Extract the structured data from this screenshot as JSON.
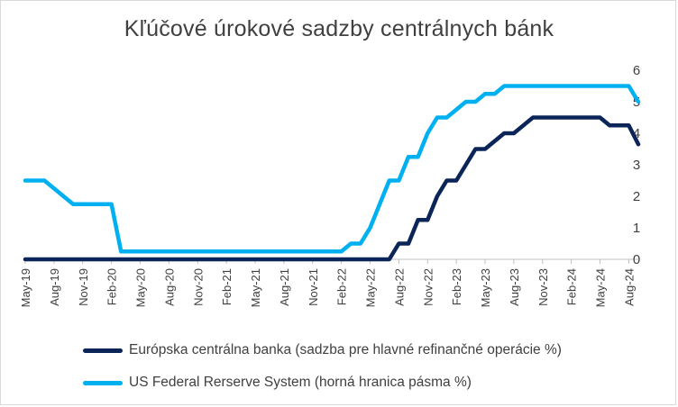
{
  "chart_data": {
    "type": "line",
    "title": "Kľúčové úrokové sadzby centrálnych bánk",
    "xlabel": "",
    "ylabel": "",
    "ylim": [
      0,
      6
    ],
    "yticks": [
      "0",
      "1",
      "2",
      "3",
      "4",
      "5",
      "6"
    ],
    "y_axis_position": "right",
    "grid": false,
    "legend_position": "bottom",
    "x": [
      "May-19",
      "Jun-19",
      "Jul-19",
      "Aug-19",
      "Sep-19",
      "Oct-19",
      "Nov-19",
      "Dec-19",
      "Jan-20",
      "Feb-20",
      "Mar-20",
      "Apr-20",
      "May-20",
      "Jun-20",
      "Jul-20",
      "Aug-20",
      "Sep-20",
      "Oct-20",
      "Nov-20",
      "Dec-20",
      "Jan-21",
      "Feb-21",
      "Mar-21",
      "Apr-21",
      "May-21",
      "Jun-21",
      "Jul-21",
      "Aug-21",
      "Sep-21",
      "Oct-21",
      "Nov-21",
      "Dec-21",
      "Jan-22",
      "Feb-22",
      "Mar-22",
      "Apr-22",
      "May-22",
      "Jun-22",
      "Jul-22",
      "Aug-22",
      "Sep-22",
      "Oct-22",
      "Nov-22",
      "Dec-22",
      "Jan-23",
      "Feb-23",
      "Mar-23",
      "Apr-23",
      "May-23",
      "Jun-23",
      "Jul-23",
      "Aug-23",
      "Sep-23",
      "Oct-23",
      "Nov-23",
      "Dec-23",
      "Jan-24",
      "Feb-24",
      "Mar-24",
      "Apr-24",
      "May-24",
      "Jun-24",
      "Jul-24",
      "Aug-24",
      "Sep-24"
    ],
    "x_tick_labels": [
      "May-19",
      "Aug-19",
      "Nov-19",
      "Feb-20",
      "May-20",
      "Aug-20",
      "Nov-20",
      "Feb-21",
      "May-21",
      "Aug-21",
      "Nov-21",
      "Feb-22",
      "May-22",
      "Aug-22",
      "Nov-22",
      "Feb-23",
      "May-23",
      "Aug-23",
      "Nov-23",
      "Feb-24",
      "May-24",
      "Aug-24"
    ],
    "series": [
      {
        "name": "Európska centrálna banka (sadzba pre hlavné refinančné operácie %)",
        "color": "#0b2559",
        "values": [
          0,
          0,
          0,
          0,
          0,
          0,
          0,
          0,
          0,
          0,
          0,
          0,
          0,
          0,
          0,
          0,
          0,
          0,
          0,
          0,
          0,
          0,
          0,
          0,
          0,
          0,
          0,
          0,
          0,
          0,
          0,
          0,
          0,
          0,
          0,
          0,
          0,
          0,
          0,
          0.5,
          0.5,
          1.25,
          1.25,
          2.0,
          2.5,
          2.5,
          3.0,
          3.5,
          3.5,
          3.75,
          4.0,
          4.0,
          4.25,
          4.5,
          4.5,
          4.5,
          4.5,
          4.5,
          4.5,
          4.5,
          4.5,
          4.25,
          4.25,
          4.25,
          3.65
        ]
      },
      {
        "name": "US Federal Rerserve System (horná hranica pásma %)",
        "color": "#00b0f0",
        "values": [
          2.5,
          2.5,
          2.5,
          2.25,
          2.0,
          1.75,
          1.75,
          1.75,
          1.75,
          1.75,
          0.25,
          0.25,
          0.25,
          0.25,
          0.25,
          0.25,
          0.25,
          0.25,
          0.25,
          0.25,
          0.25,
          0.25,
          0.25,
          0.25,
          0.25,
          0.25,
          0.25,
          0.25,
          0.25,
          0.25,
          0.25,
          0.25,
          0.25,
          0.25,
          0.5,
          0.5,
          1.0,
          1.75,
          2.5,
          2.5,
          3.25,
          3.25,
          4.0,
          4.5,
          4.5,
          4.75,
          5.0,
          5.0,
          5.25,
          5.25,
          5.5,
          5.5,
          5.5,
          5.5,
          5.5,
          5.5,
          5.5,
          5.5,
          5.5,
          5.5,
          5.5,
          5.5,
          5.5,
          5.5,
          5.0
        ]
      }
    ]
  }
}
